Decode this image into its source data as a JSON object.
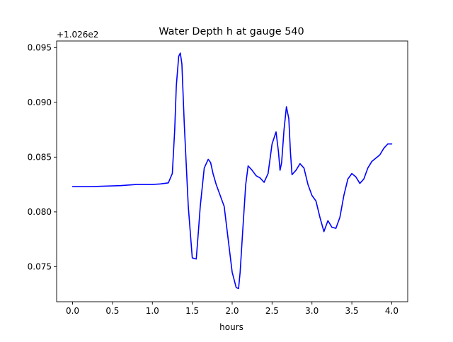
{
  "chart_data": {
    "type": "line",
    "title": "Water Depth h at gauge 540",
    "xlabel": "hours",
    "ylabel": "",
    "offset_text": "+1.026e2",
    "offset_value": 102.6,
    "xlim": [
      -0.2,
      4.2
    ],
    "ylim": [
      0.0718,
      0.0956
    ],
    "xticks": [
      0.0,
      0.5,
      1.0,
      1.5,
      2.0,
      2.5,
      3.0,
      3.5,
      4.0
    ],
    "xtick_labels": [
      "0.0",
      "0.5",
      "1.0",
      "1.5",
      "2.0",
      "2.5",
      "3.0",
      "3.5",
      "4.0"
    ],
    "yticks": [
      0.075,
      0.08,
      0.085,
      0.09,
      0.095
    ],
    "ytick_labels": [
      "0.075",
      "0.080",
      "0.085",
      "0.090",
      "0.095"
    ],
    "grid": false,
    "legend": "none",
    "series": [
      {
        "color": "#0000ff",
        "x": [
          0.0,
          0.2,
          0.4,
          0.6,
          0.8,
          1.0,
          1.1,
          1.2,
          1.25,
          1.28,
          1.3,
          1.33,
          1.35,
          1.37,
          1.4,
          1.45,
          1.5,
          1.55,
          1.58,
          1.6,
          1.65,
          1.7,
          1.73,
          1.76,
          1.8,
          1.85,
          1.9,
          1.95,
          2.0,
          2.05,
          2.08,
          2.1,
          2.13,
          2.17,
          2.2,
          2.25,
          2.3,
          2.35,
          2.4,
          2.45,
          2.5,
          2.55,
          2.58,
          2.6,
          2.62,
          2.65,
          2.68,
          2.71,
          2.73,
          2.75,
          2.8,
          2.85,
          2.9,
          2.95,
          3.0,
          3.05,
          3.1,
          3.15,
          3.2,
          3.25,
          3.3,
          3.35,
          3.4,
          3.45,
          3.5,
          3.55,
          3.6,
          3.65,
          3.7,
          3.75,
          3.8,
          3.85,
          3.9,
          3.95,
          4.0
        ],
        "y": [
          0.0823,
          0.0823,
          0.08235,
          0.0824,
          0.0825,
          0.0825,
          0.08255,
          0.08265,
          0.0835,
          0.0875,
          0.0915,
          0.0942,
          0.0945,
          0.0935,
          0.088,
          0.0805,
          0.0758,
          0.0757,
          0.0785,
          0.0805,
          0.084,
          0.0848,
          0.0845,
          0.0835,
          0.0825,
          0.0815,
          0.0805,
          0.0775,
          0.0745,
          0.0731,
          0.073,
          0.0745,
          0.078,
          0.0825,
          0.0842,
          0.0838,
          0.0833,
          0.0831,
          0.0827,
          0.0835,
          0.0862,
          0.0873,
          0.0855,
          0.0838,
          0.0845,
          0.0875,
          0.0896,
          0.0885,
          0.0855,
          0.0834,
          0.0838,
          0.0844,
          0.084,
          0.0825,
          0.0815,
          0.081,
          0.0795,
          0.0782,
          0.0792,
          0.0786,
          0.0785,
          0.0795,
          0.0815,
          0.083,
          0.0835,
          0.0832,
          0.0826,
          0.083,
          0.084,
          0.0846,
          0.0849,
          0.0852,
          0.0858,
          0.0862,
          0.0862
        ]
      }
    ]
  }
}
